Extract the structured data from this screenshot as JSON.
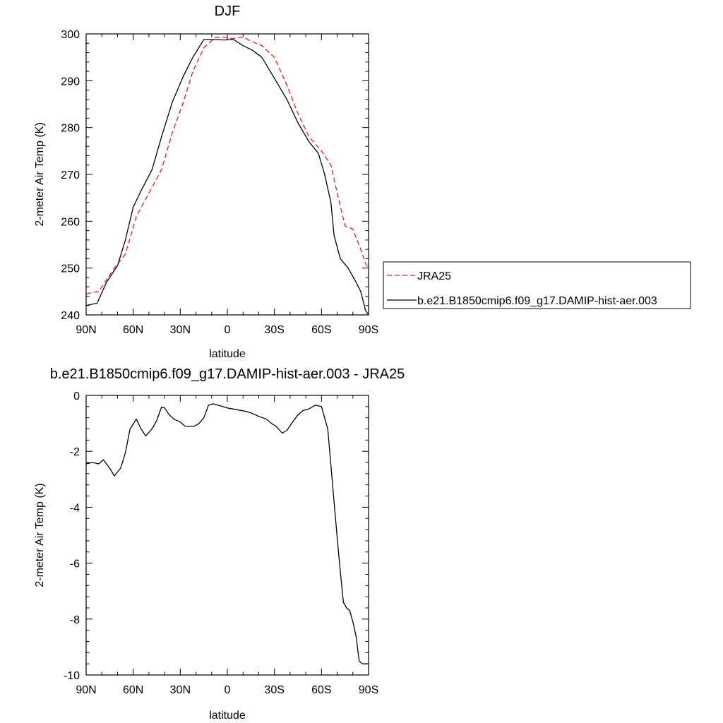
{
  "chart_data": [
    {
      "type": "line",
      "title": "DJF",
      "xlabel": "latitude",
      "ylabel": "2-meter Air Temp (K)",
      "xlim": [
        -90,
        90
      ],
      "ylim": [
        240,
        300
      ],
      "x_tick_values": [
        -90,
        -60,
        -30,
        0,
        30,
        60,
        90
      ],
      "x_tick_labels": [
        "90N",
        "60N",
        "30N",
        "0",
        "30S",
        "60S",
        "90S"
      ],
      "y_tick_values": [
        240,
        250,
        260,
        270,
        280,
        290,
        300
      ],
      "y_tick_labels": [
        "240",
        "250",
        "260",
        "270",
        "280",
        "290",
        "300"
      ],
      "legend_position": "right",
      "series": [
        {
          "name": "JRA25",
          "color": "#e8201c",
          "dash": "dashed",
          "x": [
            -90,
            -82,
            -72,
            -65,
            -58,
            -50,
            -42,
            -35,
            -28,
            -22,
            -15,
            -8,
            -3,
            3,
            10,
            16,
            22,
            30,
            38,
            45,
            52,
            60,
            66,
            70,
            75,
            80,
            85,
            88,
            90
          ],
          "y": [
            244.5,
            245,
            250,
            253,
            261,
            266,
            271,
            279,
            285.5,
            292,
            297,
            299.2,
            299.3,
            299,
            299.3,
            298.3,
            297.5,
            295,
            289,
            283,
            278,
            275,
            272,
            266,
            259,
            258.3,
            254,
            251,
            250
          ]
        },
        {
          "name": "b.e21.B1850cmip6.f09_g17.DAMIP-hist-aer.003",
          "color": "#000000",
          "dash": "solid",
          "x": [
            -90,
            -83,
            -77,
            -70,
            -65,
            -60,
            -55,
            -48,
            -42,
            -35,
            -28,
            -22,
            -15,
            -8,
            -2,
            4,
            10,
            16,
            22,
            30,
            38,
            45,
            52,
            58,
            62,
            66,
            68,
            72,
            77,
            82,
            85,
            88,
            90
          ],
          "y": [
            242,
            242.5,
            247,
            250.5,
            256,
            263,
            266.5,
            271,
            278,
            285.5,
            291,
            295,
            298.8,
            298.8,
            298.7,
            298.8,
            297.5,
            296.5,
            295,
            290.5,
            286,
            281,
            277,
            274.5,
            270,
            264,
            257,
            252,
            250,
            247,
            245,
            241,
            240
          ]
        }
      ]
    },
    {
      "type": "line",
      "title": "b.e21.B1850cmip6.f09_g17.DAMIP-hist-aer.003 - JRA25",
      "xlabel": "latitude",
      "ylabel": "2-meter Air Temp (K)",
      "xlim": [
        -90,
        90
      ],
      "ylim": [
        -10,
        0
      ],
      "x_tick_values": [
        -90,
        -60,
        -30,
        0,
        30,
        60,
        90
      ],
      "x_tick_labels": [
        "90N",
        "60N",
        "30N",
        "0",
        "30S",
        "60S",
        "90S"
      ],
      "y_tick_values": [
        -10,
        -8,
        -6,
        -4,
        -2,
        0
      ],
      "y_tick_labels": [
        "-10",
        "-8",
        "-6",
        "-4",
        "-2",
        "0"
      ],
      "series": [
        {
          "color": "#000000",
          "dash": "solid",
          "x": [
            -90,
            -86,
            -82,
            -79,
            -75,
            -72,
            -68,
            -65,
            -62,
            -58,
            -55,
            -52,
            -48,
            -45,
            -42,
            -40,
            -37,
            -34,
            -30,
            -27,
            -24,
            -21,
            -18,
            -15,
            -12,
            -9,
            -6,
            -3,
            0,
            5,
            10,
            15,
            20,
            25,
            28,
            31,
            35,
            38,
            41,
            45,
            48,
            52,
            56,
            60,
            64,
            66,
            68,
            70,
            72,
            74,
            76,
            78,
            80,
            82,
            84,
            86,
            88,
            90
          ],
          "y": [
            -2.45,
            -2.4,
            -2.45,
            -2.3,
            -2.6,
            -2.88,
            -2.6,
            -2.05,
            -1.2,
            -0.85,
            -1.2,
            -1.45,
            -1.2,
            -0.9,
            -0.42,
            -0.45,
            -0.7,
            -0.85,
            -0.95,
            -1.1,
            -1.1,
            -1.1,
            -1.0,
            -0.8,
            -0.35,
            -0.3,
            -0.35,
            -0.4,
            -0.45,
            -0.5,
            -0.55,
            -0.62,
            -0.75,
            -0.85,
            -1.0,
            -1.1,
            -1.35,
            -1.25,
            -1.0,
            -0.7,
            -0.55,
            -0.48,
            -0.35,
            -0.4,
            -1.2,
            -2.5,
            -3.8,
            -5.1,
            -6.3,
            -7.4,
            -7.6,
            -7.7,
            -8.1,
            -8.6,
            -9.5,
            -9.6,
            -9.6,
            -9.6
          ]
        }
      ]
    }
  ]
}
